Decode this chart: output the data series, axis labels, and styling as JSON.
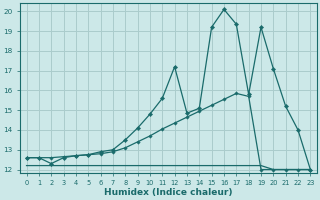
{
  "xlabel": "Humidex (Indice chaleur)",
  "bg_color": "#cce8e8",
  "grid_color": "#aacccc",
  "line_color": "#1a6b6b",
  "xlim": [
    -0.5,
    23.5
  ],
  "ylim": [
    11.85,
    20.4
  ],
  "yticks": [
    12,
    13,
    14,
    15,
    16,
    17,
    18,
    19,
    20
  ],
  "xticks": [
    0,
    1,
    2,
    3,
    4,
    5,
    6,
    7,
    8,
    9,
    10,
    11,
    12,
    13,
    14,
    15,
    16,
    17,
    18,
    19,
    20,
    21,
    22,
    23
  ],
  "line1_x": [
    0,
    1,
    2,
    3,
    4,
    5,
    6,
    7,
    8,
    9,
    10,
    11,
    12,
    13,
    14,
    15,
    16,
    17,
    18,
    19,
    20,
    21,
    22,
    23
  ],
  "line1_y": [
    12.6,
    12.6,
    12.3,
    12.6,
    12.7,
    12.75,
    12.9,
    13.0,
    13.5,
    14.1,
    14.8,
    15.6,
    17.2,
    14.85,
    15.1,
    19.2,
    20.1,
    19.35,
    15.8,
    19.2,
    17.1,
    15.2,
    14.0,
    12.0
  ],
  "line2_x": [
    0,
    1,
    2,
    3,
    4,
    5,
    6,
    7,
    8,
    9,
    10,
    11,
    12,
    13,
    14,
    15,
    16,
    17,
    18,
    19,
    20,
    21,
    22,
    23
  ],
  "line2_y": [
    12.6,
    12.6,
    12.6,
    12.65,
    12.7,
    12.75,
    12.8,
    12.9,
    13.1,
    13.4,
    13.7,
    14.05,
    14.35,
    14.65,
    14.95,
    15.25,
    15.55,
    15.85,
    15.7,
    12.0,
    12.0,
    12.0,
    12.0,
    12.0
  ],
  "line3_x": [
    0,
    1,
    2,
    3,
    4,
    5,
    6,
    7,
    8,
    9,
    10,
    11,
    12,
    13,
    14,
    15,
    16,
    17,
    18,
    19,
    20,
    21,
    22,
    23
  ],
  "line3_y": [
    12.2,
    12.2,
    12.2,
    12.2,
    12.2,
    12.2,
    12.2,
    12.2,
    12.2,
    12.2,
    12.2,
    12.2,
    12.2,
    12.2,
    12.2,
    12.2,
    12.2,
    12.2,
    12.2,
    12.2,
    12.0,
    12.0,
    12.0,
    12.0
  ]
}
